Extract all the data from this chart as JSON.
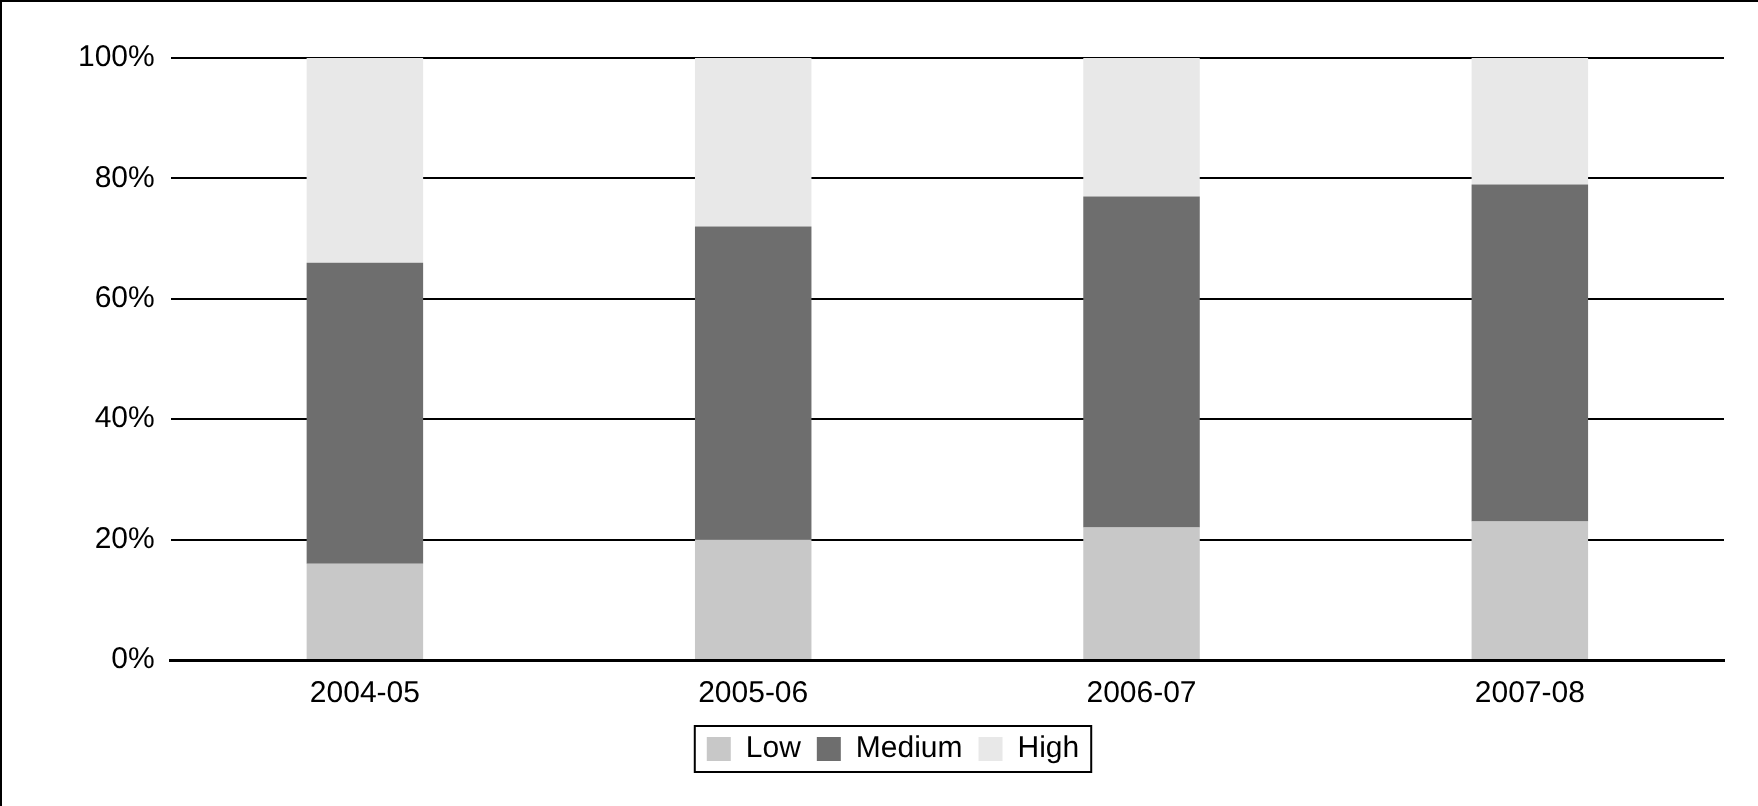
{
  "chart_data": {
    "type": "bar",
    "stacked": true,
    "categories": [
      "2004-05",
      "2005-06",
      "2006-07",
      "2007-08"
    ],
    "series": [
      {
        "name": "Low",
        "color": "#c8c8c8",
        "values": [
          16,
          20,
          22,
          23
        ]
      },
      {
        "name": "Medium",
        "color": "#6e6e6e",
        "values": [
          50,
          52,
          55,
          56
        ]
      },
      {
        "name": "High",
        "color": "#e8e8e8",
        "values": [
          34,
          28,
          23,
          21
        ]
      }
    ],
    "ylim": [
      0,
      100
    ],
    "yticks": [
      {
        "value": 0,
        "label": "0%"
      },
      {
        "value": 20,
        "label": "20%"
      },
      {
        "value": 40,
        "label": "40%"
      },
      {
        "value": 60,
        "label": "60%"
      },
      {
        "value": 80,
        "label": "80%"
      },
      {
        "value": 100,
        "label": "100%"
      }
    ],
    "grid": "y",
    "legend": "bottom"
  }
}
